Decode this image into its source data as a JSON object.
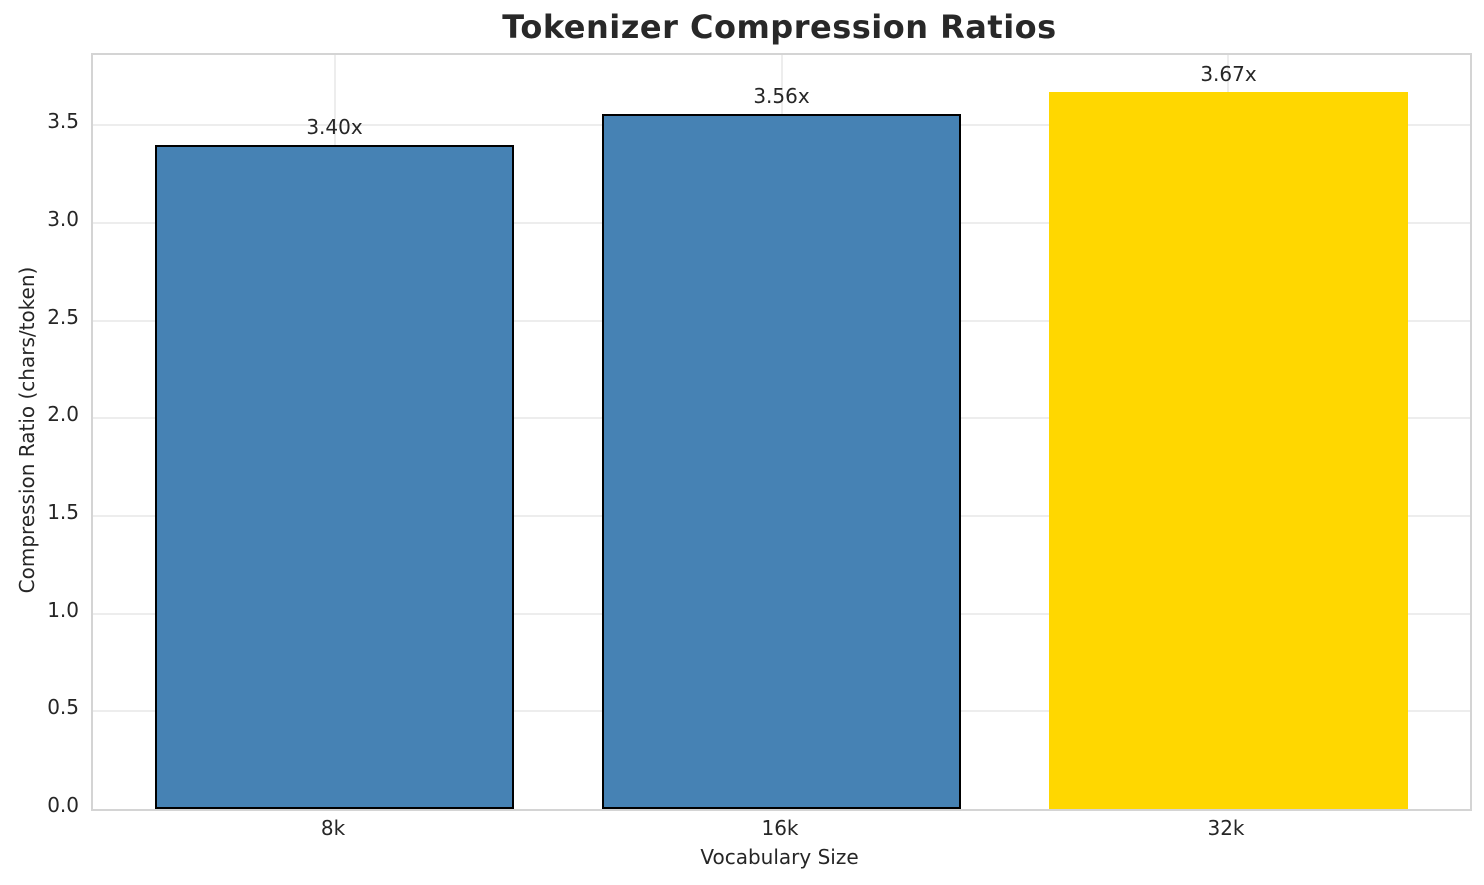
{
  "chart_data": {
    "type": "bar",
    "title": "Tokenizer Compression Ratios",
    "xlabel": "Vocabulary Size",
    "ylabel": "Compression Ratio (chars/token)",
    "categories": [
      "8k",
      "16k",
      "32k"
    ],
    "values": [
      3.4,
      3.56,
      3.67
    ],
    "bar_value_labels": [
      "3.40x",
      "3.56x",
      "3.67x"
    ],
    "bar_colors": [
      "#4682b4",
      "#4682b4",
      "#ffd700"
    ],
    "bar_edge_colors": [
      "#000000",
      "#000000",
      "none"
    ],
    "ylim": [
      0,
      3.86
    ],
    "yticks": [
      {
        "value": 0.0,
        "label": "0.0"
      },
      {
        "value": 0.5,
        "label": "0.5"
      },
      {
        "value": 1.0,
        "label": "1.0"
      },
      {
        "value": 1.5,
        "label": "1.5"
      },
      {
        "value": 2.0,
        "label": "2.0"
      },
      {
        "value": 2.5,
        "label": "2.5"
      },
      {
        "value": 3.0,
        "label": "3.0"
      },
      {
        "value": 3.5,
        "label": "3.5"
      }
    ],
    "grid": "both",
    "grid_color": "#ededed",
    "spine_color": "#d4d4d4",
    "text_color": "#262626",
    "background_color": "#ffffff",
    "legend": "none"
  }
}
